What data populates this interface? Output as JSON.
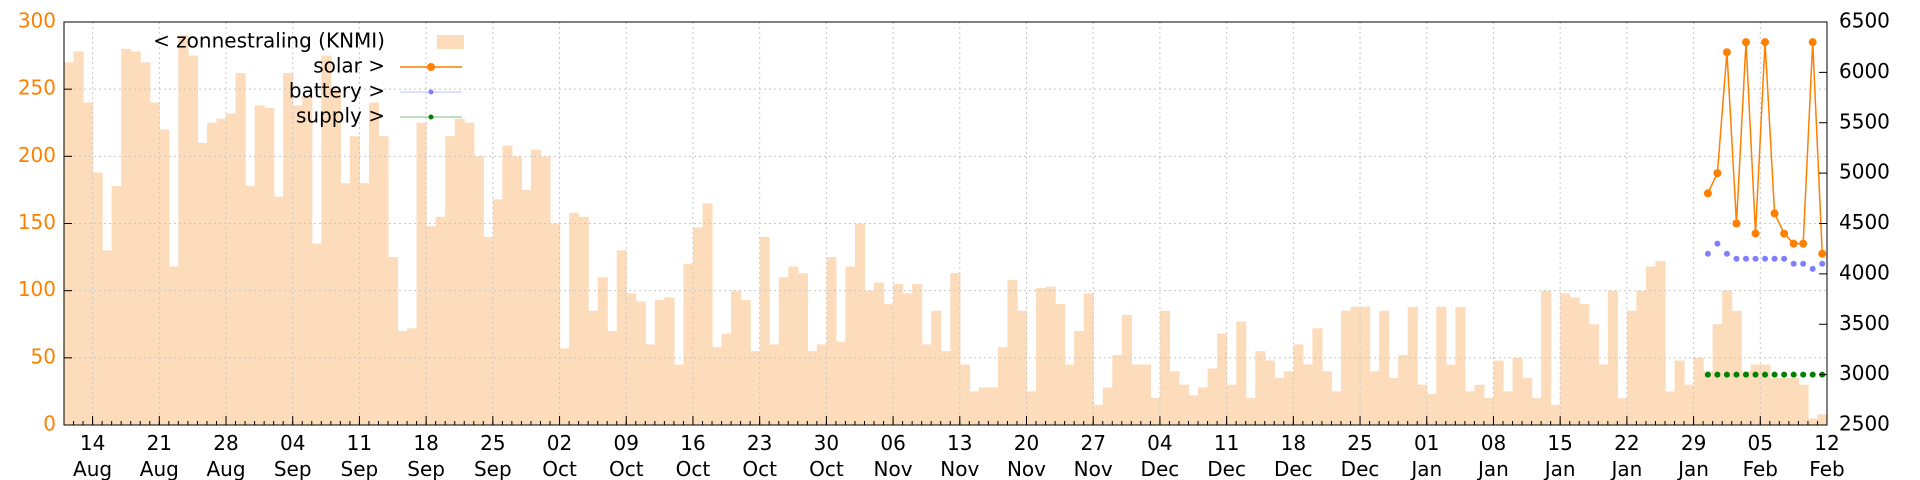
{
  "chart_data": {
    "type": "bar",
    "categories": [
      null,
      null,
      null,
      "14 Aug",
      null,
      null,
      null,
      null,
      null,
      null,
      "21 Aug",
      null,
      null,
      null,
      null,
      null,
      null,
      "28 Aug",
      null,
      null,
      null,
      null,
      null,
      null,
      "04 Sep",
      null,
      null,
      null,
      null,
      null,
      null,
      "11 Sep",
      null,
      null,
      null,
      null,
      null,
      null,
      "18 Sep",
      null,
      null,
      null,
      null,
      null,
      null,
      "25 Sep",
      null,
      null,
      null,
      null,
      null,
      null,
      "02 Oct",
      null,
      null,
      null,
      null,
      null,
      null,
      "09 Oct",
      null,
      null,
      null,
      null,
      null,
      null,
      "16 Oct",
      null,
      null,
      null,
      null,
      null,
      null,
      "23 Oct",
      null,
      null,
      null,
      null,
      null,
      null,
      "30 Oct",
      null,
      null,
      null,
      null,
      null,
      null,
      "06 Nov",
      null,
      null,
      null,
      null,
      null,
      null,
      "13 Nov",
      null,
      null,
      null,
      null,
      null,
      null,
      "20 Nov",
      null,
      null,
      null,
      null,
      null,
      null,
      "27 Nov",
      null,
      null,
      null,
      null,
      null,
      null,
      "04 Dec",
      null,
      null,
      null,
      null,
      null,
      null,
      "11 Dec",
      null,
      null,
      null,
      null,
      null,
      null,
      "18 Dec",
      null,
      null,
      null,
      null,
      null,
      null,
      "25 Dec",
      null,
      null,
      null,
      null,
      null,
      null,
      "01 Jan",
      null,
      null,
      null,
      null,
      null,
      null,
      "08 Jan",
      null,
      null,
      null,
      null,
      null,
      null,
      "15 Jan",
      null,
      null,
      null,
      null,
      null,
      null,
      "22 Jan",
      null,
      null,
      null,
      null,
      null,
      null,
      "29 Jan",
      null,
      null,
      null,
      null,
      null,
      null,
      "05 Feb",
      null,
      null,
      null,
      null,
      null,
      null,
      "12 Feb"
    ],
    "series": [
      {
        "name": "< zonnestraling (KNMI)",
        "type": "bar",
        "color": "#fddcbc",
        "values": [
          270,
          278,
          240,
          188,
          130,
          178,
          280,
          278,
          270,
          240,
          220,
          118,
          290,
          275,
          210,
          225,
          228,
          232,
          262,
          178,
          238,
          236,
          170,
          262,
          238,
          245,
          135,
          275,
          250,
          180,
          215,
          180,
          240,
          215,
          125,
          70,
          72,
          225,
          148,
          155,
          215,
          228,
          225,
          200,
          140,
          168,
          208,
          200,
          175,
          205,
          200,
          150,
          57,
          158,
          155,
          85,
          110,
          70,
          130,
          98,
          92,
          60,
          93,
          95,
          45,
          120,
          147,
          165,
          58,
          68,
          100,
          93,
          55,
          140,
          60,
          110,
          118,
          113,
          55,
          60,
          125,
          62,
          118,
          150,
          100,
          106,
          90,
          105,
          98,
          105,
          60,
          85,
          55,
          113,
          45,
          25,
          28,
          28,
          58,
          108,
          85,
          25,
          102,
          103,
          90,
          45,
          70,
          98,
          15,
          28,
          52,
          82,
          45,
          45,
          20,
          85,
          40,
          30,
          22,
          28,
          42,
          68,
          30,
          77,
          20,
          55,
          48,
          35,
          40,
          60,
          45,
          72,
          40,
          25,
          85,
          88,
          88,
          40,
          85,
          35,
          52,
          88,
          30,
          23,
          88,
          45,
          88,
          25,
          30,
          20,
          48,
          25,
          50,
          35,
          20,
          100,
          15,
          98,
          95,
          90,
          75,
          45,
          100,
          20,
          85,
          100,
          118,
          122,
          25,
          48,
          30,
          50,
          40,
          75,
          100,
          85,
          40,
          45,
          45,
          35,
          35,
          35,
          30,
          5,
          8,
          null
        ]
      },
      {
        "name": "solar >",
        "type": "line",
        "axis": "y2",
        "color": "#ff7f00",
        "values": [
          null,
          null,
          null,
          null,
          null,
          null,
          null,
          null,
          null,
          null,
          null,
          null,
          null,
          null,
          null,
          null,
          null,
          null,
          null,
          null,
          null,
          null,
          null,
          null,
          null,
          null,
          null,
          null,
          null,
          null,
          null,
          null,
          null,
          null,
          null,
          null,
          null,
          null,
          null,
          null,
          null,
          null,
          null,
          null,
          null,
          null,
          null,
          null,
          null,
          null,
          null,
          null,
          null,
          null,
          null,
          null,
          null,
          null,
          null,
          null,
          null,
          null,
          null,
          null,
          null,
          null,
          null,
          null,
          null,
          null,
          null,
          null,
          null,
          null,
          null,
          null,
          null,
          null,
          null,
          null,
          null,
          null,
          null,
          null,
          null,
          null,
          null,
          null,
          null,
          null,
          null,
          null,
          null,
          null,
          null,
          null,
          null,
          null,
          null,
          null,
          null,
          null,
          null,
          null,
          null,
          null,
          null,
          null,
          null,
          null,
          null,
          null,
          null,
          null,
          null,
          null,
          null,
          null,
          null,
          null,
          null,
          null,
          null,
          null,
          null,
          null,
          null,
          null,
          null,
          null,
          null,
          null,
          null,
          null,
          null,
          null,
          null,
          null,
          null,
          null,
          null,
          null,
          null,
          null,
          null,
          null,
          null,
          null,
          null,
          null,
          null,
          null,
          null,
          null,
          null,
          null,
          null,
          null,
          null,
          null,
          null,
          null,
          null,
          null,
          null,
          null,
          null,
          null,
          null,
          null,
          null,
          null,
          4800,
          5000,
          6200,
          4500,
          6300,
          4400,
          6300,
          4600,
          4400,
          4300,
          4300,
          6300,
          4200,
          null
        ]
      },
      {
        "name": "battery >",
        "type": "scatter",
        "axis": "y2",
        "color": "#8080ff",
        "values": [
          null,
          null,
          null,
          null,
          null,
          null,
          null,
          null,
          null,
          null,
          null,
          null,
          null,
          null,
          null,
          null,
          null,
          null,
          null,
          null,
          null,
          null,
          null,
          null,
          null,
          null,
          null,
          null,
          null,
          null,
          null,
          null,
          null,
          null,
          null,
          null,
          null,
          null,
          null,
          null,
          null,
          null,
          null,
          null,
          null,
          null,
          null,
          null,
          null,
          null,
          null,
          null,
          null,
          null,
          null,
          null,
          null,
          null,
          null,
          null,
          null,
          null,
          null,
          null,
          null,
          null,
          null,
          null,
          null,
          null,
          null,
          null,
          null,
          null,
          null,
          null,
          null,
          null,
          null,
          null,
          null,
          null,
          null,
          null,
          null,
          null,
          null,
          null,
          null,
          null,
          null,
          null,
          null,
          null,
          null,
          null,
          null,
          null,
          null,
          null,
          null,
          null,
          null,
          null,
          null,
          null,
          null,
          null,
          null,
          null,
          null,
          null,
          null,
          null,
          null,
          null,
          null,
          null,
          null,
          null,
          null,
          null,
          null,
          null,
          null,
          null,
          null,
          null,
          null,
          null,
          null,
          null,
          null,
          null,
          null,
          null,
          null,
          null,
          null,
          null,
          null,
          null,
          null,
          null,
          null,
          null,
          null,
          null,
          null,
          null,
          null,
          null,
          null,
          null,
          null,
          null,
          null,
          null,
          null,
          null,
          null,
          null,
          null,
          null,
          null,
          null,
          null,
          null,
          null,
          null,
          null,
          null,
          4200,
          4300,
          4200,
          4150,
          4150,
          4150,
          4150,
          4150,
          4150,
          4100,
          4100,
          4050,
          4100,
          null
        ]
      },
      {
        "name": "supply >",
        "type": "scatter",
        "axis": "y2",
        "color": "#008000",
        "values": [
          null,
          null,
          null,
          null,
          null,
          null,
          null,
          null,
          null,
          null,
          null,
          null,
          null,
          null,
          null,
          null,
          null,
          null,
          null,
          null,
          null,
          null,
          null,
          null,
          null,
          null,
          null,
          null,
          null,
          null,
          null,
          null,
          null,
          null,
          null,
          null,
          null,
          null,
          null,
          null,
          null,
          null,
          null,
          null,
          null,
          null,
          null,
          null,
          null,
          null,
          null,
          null,
          null,
          null,
          null,
          null,
          null,
          null,
          null,
          null,
          null,
          null,
          null,
          null,
          null,
          null,
          null,
          null,
          null,
          null,
          null,
          null,
          null,
          null,
          null,
          null,
          null,
          null,
          null,
          null,
          null,
          null,
          null,
          null,
          null,
          null,
          null,
          null,
          null,
          null,
          null,
          null,
          null,
          null,
          null,
          null,
          null,
          null,
          null,
          null,
          null,
          null,
          null,
          null,
          null,
          null,
          null,
          null,
          null,
          null,
          null,
          null,
          null,
          null,
          null,
          null,
          null,
          null,
          null,
          null,
          null,
          null,
          null,
          null,
          null,
          null,
          null,
          null,
          null,
          null,
          null,
          null,
          null,
          null,
          null,
          null,
          null,
          null,
          null,
          null,
          null,
          null,
          null,
          null,
          null,
          null,
          null,
          null,
          null,
          null,
          null,
          null,
          null,
          null,
          null,
          null,
          null,
          null,
          null,
          null,
          null,
          null,
          null,
          null,
          null,
          null,
          null,
          null,
          null,
          null,
          null,
          null,
          3000,
          3000,
          3000,
          3000,
          3000,
          3000,
          3000,
          3000,
          3000,
          3000,
          3000,
          3000,
          3000,
          null
        ]
      }
    ],
    "ylim": [
      0,
      300
    ],
    "yticks": [
      0,
      50,
      100,
      150,
      200,
      250,
      300
    ],
    "ytick_color": "#ff8000",
    "y2lim": [
      2500,
      6500
    ],
    "y2ticks": [
      2500,
      3000,
      3500,
      4000,
      4500,
      5000,
      5500,
      6000,
      6500
    ],
    "grid": true,
    "legend": "upper left"
  }
}
